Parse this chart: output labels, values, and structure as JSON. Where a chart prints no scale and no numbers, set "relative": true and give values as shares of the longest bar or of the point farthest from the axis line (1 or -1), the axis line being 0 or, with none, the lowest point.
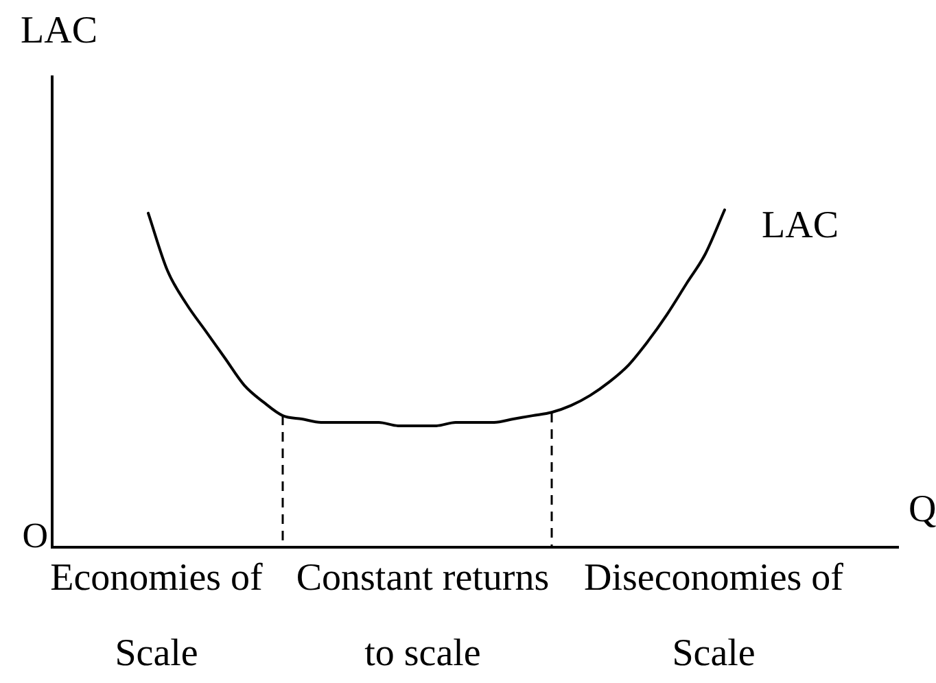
{
  "chart_data": {
    "type": "line",
    "ylabel": "LAC",
    "xlabel": "Q",
    "relative": true,
    "marker": "none",
    "line_style": "solid",
    "categories": [
      null,
      null,
      null,
      null,
      null,
      null,
      null,
      null,
      null,
      null,
      null,
      null,
      null,
      null,
      null,
      null,
      null,
      null,
      null,
      null,
      null,
      null,
      null,
      null,
      null,
      null,
      null,
      null,
      null,
      null,
      null,
      null,
      null,
      null,
      null,
      null,
      null,
      null,
      null,
      null,
      null,
      null,
      null,
      null,
      null
    ],
    "series": [
      {
        "name": "LAC",
        "color": "#000000",
        "values": [
          null,
          null,
          null,
          null,
          null,
          0.99,
          0.82,
          0.72,
          0.64,
          0.56,
          0.48,
          0.43,
          0.39,
          0.38,
          0.37,
          0.37,
          0.37,
          0.37,
          0.36,
          0.36,
          0.36,
          0.37,
          0.37,
          0.37,
          0.38,
          0.39,
          0.4,
          0.42,
          0.45,
          0.49,
          0.54,
          0.61,
          0.69,
          0.78,
          0.87,
          1,
          null,
          null,
          null,
          null,
          null,
          null,
          null,
          null,
          null
        ]
      }
    ],
    "annotations": [
      "O",
      "Economies of\nScale",
      "Constant returns\nto scale",
      "Diseconomies of\nScale"
    ]
  }
}
